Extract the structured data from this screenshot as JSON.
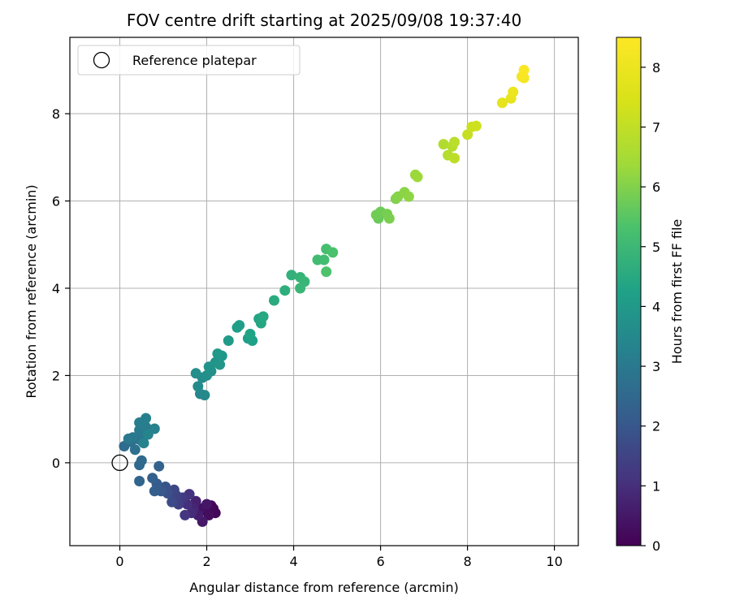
{
  "chart_data": {
    "type": "scatter",
    "title": "FOV centre drift starting at 2025/09/08 19:37:40",
    "xlabel": "Angular distance from reference (arcmin)",
    "ylabel": "Rotation from reference (arcmin)",
    "xlim": [
      -1.15,
      10.55
    ],
    "ylim": [
      -1.9,
      9.75
    ],
    "xticks": [
      0,
      2,
      4,
      6,
      8,
      10
    ],
    "yticks": [
      0,
      2,
      4,
      6,
      8
    ],
    "grid": true,
    "legend_position": "top-left",
    "legend": [
      {
        "label": "Reference platepar",
        "marker": "open-circle"
      }
    ],
    "reference_point": {
      "x": 0,
      "y": 0
    },
    "colorbar": {
      "label": "Hours from first FF file",
      "range": [
        0,
        8.5
      ],
      "ticks": [
        0,
        1,
        2,
        3,
        4,
        5,
        6,
        7,
        8
      ],
      "colormap": "viridis"
    },
    "series": [
      {
        "points": [
          [
            2.15,
            -1.05,
            0.05
          ],
          [
            2.2,
            -1.15,
            0.1
          ],
          [
            2.1,
            -0.98,
            0.15
          ],
          [
            1.95,
            -1.1,
            0.2
          ],
          [
            2.05,
            -1.2,
            0.25
          ],
          [
            1.85,
            -1.05,
            0.35
          ],
          [
            2.0,
            -0.95,
            0.45
          ],
          [
            1.9,
            -1.35,
            0.5
          ],
          [
            1.8,
            -1.2,
            0.6
          ],
          [
            1.75,
            -0.88,
            0.7
          ],
          [
            1.7,
            -1.05,
            0.8
          ],
          [
            1.65,
            -1.15,
            0.9
          ],
          [
            1.55,
            -0.95,
            1.0
          ],
          [
            1.6,
            -0.72,
            1.1
          ],
          [
            1.5,
            -1.2,
            1.2
          ],
          [
            1.45,
            -0.8,
            1.3
          ],
          [
            1.35,
            -0.95,
            1.4
          ],
          [
            1.3,
            -0.75,
            1.5
          ],
          [
            1.25,
            -0.62,
            1.6
          ],
          [
            1.2,
            -0.9,
            1.7
          ],
          [
            1.1,
            -0.7,
            1.8
          ],
          [
            1.05,
            -0.55,
            1.9
          ],
          [
            0.95,
            -0.65,
            2.0
          ],
          [
            0.85,
            -0.48,
            2.1
          ],
          [
            0.8,
            -0.65,
            2.2
          ],
          [
            0.75,
            -0.35,
            2.25
          ],
          [
            0.9,
            -0.08,
            2.3
          ],
          [
            0.45,
            -0.42,
            2.4
          ],
          [
            0.45,
            -0.05,
            2.5
          ],
          [
            0.5,
            0.05,
            2.55
          ],
          [
            0.1,
            0.38,
            2.6
          ],
          [
            0.25,
            0.48,
            2.7
          ],
          [
            0.35,
            0.3,
            2.75
          ],
          [
            0.4,
            0.55,
            2.8
          ],
          [
            0.5,
            0.5,
            2.85
          ],
          [
            0.55,
            0.6,
            2.9
          ],
          [
            0.3,
            0.58,
            2.95
          ],
          [
            0.2,
            0.55,
            3.0
          ],
          [
            0.45,
            0.75,
            3.05
          ],
          [
            0.6,
            0.82,
            3.1
          ],
          [
            0.45,
            0.92,
            3.15
          ],
          [
            0.6,
            1.02,
            3.2
          ],
          [
            0.8,
            0.78,
            3.25
          ],
          [
            0.55,
            0.45,
            3.3
          ],
          [
            0.65,
            0.65,
            3.35
          ],
          [
            1.85,
            1.58,
            3.45
          ],
          [
            1.95,
            1.55,
            3.5
          ],
          [
            1.8,
            1.75,
            3.55
          ],
          [
            1.9,
            1.95,
            3.6
          ],
          [
            1.75,
            2.05,
            3.65
          ],
          [
            2.0,
            2.0,
            3.7
          ],
          [
            2.1,
            2.1,
            3.75
          ],
          [
            2.05,
            2.2,
            3.8
          ],
          [
            2.2,
            2.3,
            3.85
          ],
          [
            2.3,
            2.25,
            3.9
          ],
          [
            2.35,
            2.45,
            3.95
          ],
          [
            2.25,
            2.5,
            4.0
          ],
          [
            2.5,
            2.8,
            4.05
          ],
          [
            2.7,
            3.1,
            4.1
          ],
          [
            2.75,
            3.15,
            4.15
          ],
          [
            2.95,
            2.85,
            4.2
          ],
          [
            3.05,
            2.8,
            4.25
          ],
          [
            3.0,
            2.95,
            4.3
          ],
          [
            3.2,
            3.3,
            4.35
          ],
          [
            3.25,
            3.2,
            4.4
          ],
          [
            3.3,
            3.35,
            4.45
          ],
          [
            3.55,
            3.72,
            4.55
          ],
          [
            3.8,
            3.95,
            4.65
          ],
          [
            3.95,
            4.3,
            4.75
          ],
          [
            4.15,
            4.25,
            4.85
          ],
          [
            4.25,
            4.15,
            4.9
          ],
          [
            4.15,
            4.0,
            4.95
          ],
          [
            4.55,
            4.65,
            5.1
          ],
          [
            4.7,
            4.65,
            5.15
          ],
          [
            4.75,
            4.9,
            5.2
          ],
          [
            4.9,
            4.82,
            5.3
          ],
          [
            4.75,
            4.38,
            5.35
          ],
          [
            5.95,
            5.6,
            5.7
          ],
          [
            6.0,
            5.75,
            5.75
          ],
          [
            5.9,
            5.68,
            5.8
          ],
          [
            6.15,
            5.7,
            5.85
          ],
          [
            6.2,
            5.6,
            5.9
          ],
          [
            6.35,
            6.05,
            6.0
          ],
          [
            6.4,
            6.1,
            6.05
          ],
          [
            6.55,
            6.2,
            6.1
          ],
          [
            6.65,
            6.1,
            6.15
          ],
          [
            6.8,
            6.6,
            6.3
          ],
          [
            6.85,
            6.55,
            6.35
          ],
          [
            7.45,
            7.3,
            6.7
          ],
          [
            7.55,
            7.05,
            6.75
          ],
          [
            7.65,
            7.25,
            6.8
          ],
          [
            7.7,
            7.35,
            6.85
          ],
          [
            7.7,
            6.98,
            6.9
          ],
          [
            8.0,
            7.52,
            7.1
          ],
          [
            8.1,
            7.7,
            7.2
          ],
          [
            8.2,
            7.72,
            7.25
          ],
          [
            8.8,
            8.25,
            7.8
          ],
          [
            9.0,
            8.35,
            7.9
          ],
          [
            9.05,
            8.5,
            8.0
          ],
          [
            9.25,
            8.85,
            8.2
          ],
          [
            9.3,
            8.82,
            8.3
          ],
          [
            9.3,
            9.0,
            8.4
          ]
        ]
      }
    ]
  }
}
